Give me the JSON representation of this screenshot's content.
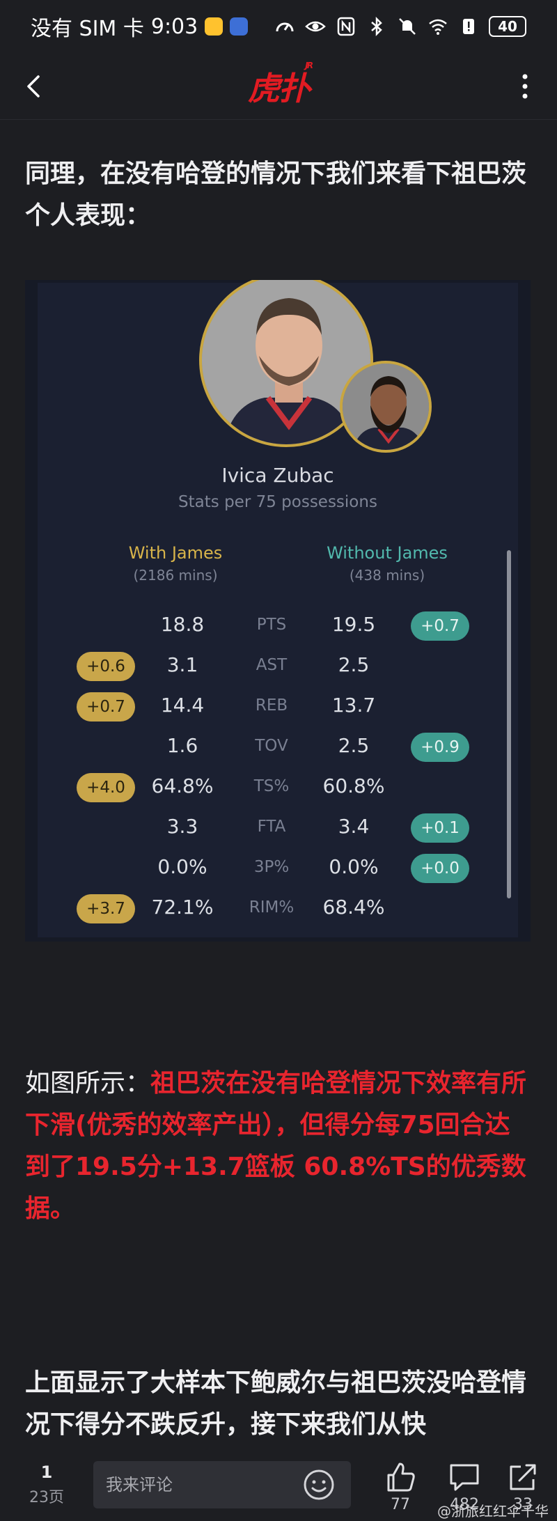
{
  "status_bar": {
    "carrier": "没有 SIM 卡",
    "time": "9:03",
    "battery": "40"
  },
  "nav": {
    "logo": "虎扑",
    "logo_sup": "JR"
  },
  "article": {
    "para1": "同理，在没有哈登的情况下我们来看下祖巴茨个人表现：",
    "para2_lead": "如图所示：",
    "para2_red": "祖巴茨在没有哈登情况下效率有所下滑(优秀的效率产出），但得分每75回合达到了19.5分+13.7篮板 60.8%TS的优秀数据。",
    "para3": "上面显示了大样本下鲍威尔与祖巴茨没哈登情况下得分不跌反升，接下来我们从快"
  },
  "stats_card": {
    "player_name": "Ivica Zubac",
    "subtitle": "Stats per 75 possessions",
    "with_label": "With James",
    "with_mins": "(2186 mins)",
    "without_label": "Without James",
    "without_mins": "(438 mins)",
    "rows": [
      {
        "stat": "PTS",
        "with": "18.8",
        "without": "19.5",
        "left_badge": "",
        "right_badge": "+0.7"
      },
      {
        "stat": "AST",
        "with": "3.1",
        "without": "2.5",
        "left_badge": "+0.6",
        "right_badge": ""
      },
      {
        "stat": "REB",
        "with": "14.4",
        "without": "13.7",
        "left_badge": "+0.7",
        "right_badge": ""
      },
      {
        "stat": "TOV",
        "with": "1.6",
        "without": "2.5",
        "left_badge": "",
        "right_badge": "+0.9"
      },
      {
        "stat": "TS%",
        "with": "64.8%",
        "without": "60.8%",
        "left_badge": "+4.0",
        "right_badge": ""
      },
      {
        "stat": "FTA",
        "with": "3.3",
        "without": "3.4",
        "left_badge": "",
        "right_badge": "+0.1"
      },
      {
        "stat": "3P%",
        "with": "0.0%",
        "without": "0.0%",
        "left_badge": "",
        "right_badge": "+0.0"
      },
      {
        "stat": "RIM%",
        "with": "72.1%",
        "without": "68.4%",
        "left_badge": "+3.7",
        "right_badge": ""
      }
    ]
  },
  "bottom_bar": {
    "page_current": "1",
    "page_total": "23页",
    "comment_placeholder": "我来评论",
    "like_count": "77",
    "comment_count": "482",
    "share_count": "33"
  },
  "watermark": "@浙旅红红伞千华",
  "colors": {
    "accent_red": "#e8252e",
    "gold": "#c9a64a",
    "teal": "#3e9c8f"
  }
}
